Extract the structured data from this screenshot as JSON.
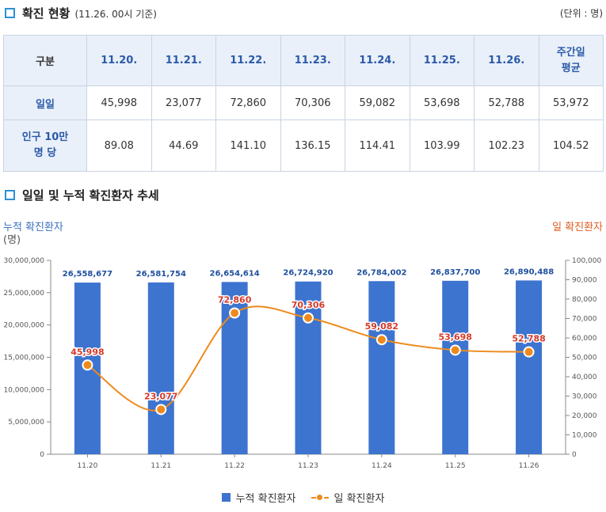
{
  "section1": {
    "title": "확진 현황",
    "subtitle": "(11.26. 00시 기준)",
    "unit": "(단위 : 명)"
  },
  "table": {
    "corner": "구분",
    "headers": [
      "11.20.",
      "11.21.",
      "11.22.",
      "11.23.",
      "11.24.",
      "11.25.",
      "11.26."
    ],
    "avg_header_line1": "주간일",
    "avg_header_line2": "평균",
    "row1": {
      "label": "일일",
      "values": [
        "45,998",
        "23,077",
        "72,860",
        "70,306",
        "59,082",
        "53,698",
        "52,788",
        "53,972"
      ]
    },
    "row2": {
      "label_line1": "인구 10만",
      "label_line2": "명 당",
      "values": [
        "89.08",
        "44.69",
        "141.10",
        "136.15",
        "114.41",
        "103.99",
        "102.23",
        "104.52"
      ]
    }
  },
  "section2": {
    "title": "일일 및 누적 확진환자 추세"
  },
  "colors": {
    "bar": "#3d74cf",
    "line": "#ee8a1c",
    "bar_label": "#1f4fa0",
    "line_label": "#d63a2a",
    "left_axis_title": "#3b6fc0",
    "right_axis_title": "#e05a1e"
  },
  "chart_data": {
    "type": "bar+line",
    "categories": [
      "11.20",
      "11.21",
      "11.22",
      "11.23",
      "11.24",
      "11.25",
      "11.26"
    ],
    "series": [
      {
        "name": "누적 확진환자",
        "type": "bar",
        "axis": "left",
        "values": [
          26558677,
          26581754,
          26654614,
          26724920,
          26784002,
          26837700,
          26890488
        ],
        "labels": [
          "26,558,677",
          "26,581,754",
          "26,654,614",
          "26,724,920",
          "26,784,002",
          "26,837,700",
          "26,890,488"
        ]
      },
      {
        "name": "일 확진환자",
        "type": "line",
        "axis": "right",
        "values": [
          45998,
          23077,
          72860,
          70306,
          59082,
          53698,
          52788
        ],
        "labels": [
          "45,998",
          "23,077",
          "72,860",
          "70,306",
          "59,082",
          "53,698",
          "52,788"
        ]
      }
    ],
    "y_left": {
      "title_line1": "누적 확진환자",
      "title_line2": "(명)",
      "range": [
        0,
        30000000
      ],
      "ticks": [
        "0",
        "5,000,000",
        "10,000,000",
        "15,000,000",
        "20,000,000",
        "25,000,000",
        "30,000,000"
      ]
    },
    "y_right": {
      "title": "일 확진환자",
      "range": [
        0,
        100000
      ],
      "ticks": [
        "0",
        "10,000",
        "20,000",
        "30,000",
        "40,000",
        "50,000",
        "60,000",
        "70,000",
        "80,000",
        "90,000",
        "100,000"
      ]
    },
    "grid": false,
    "legend_position": "bottom"
  }
}
